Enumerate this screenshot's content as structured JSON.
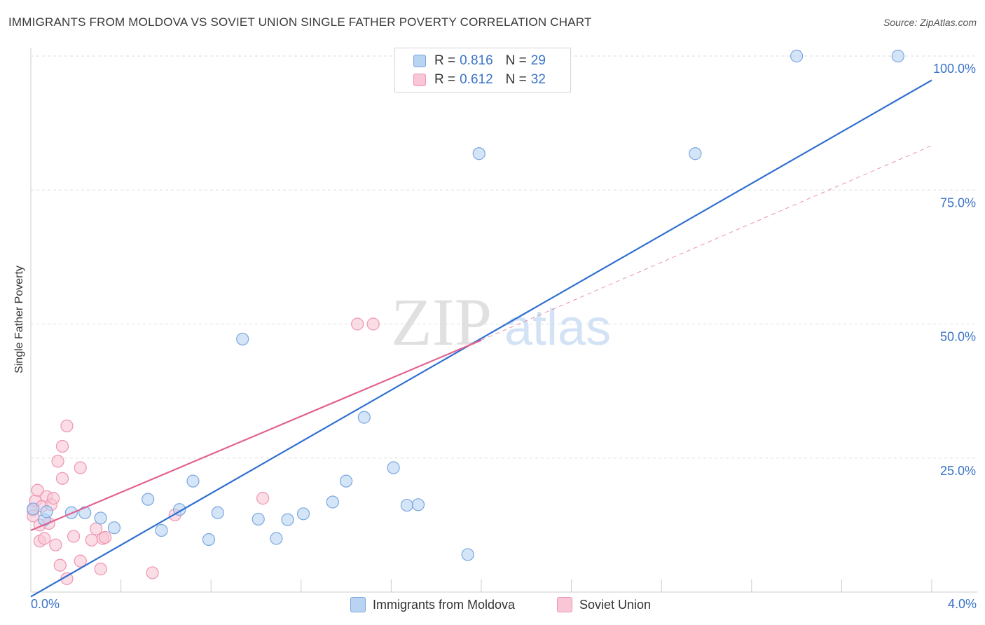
{
  "title": "IMMIGRANTS FROM MOLDOVA VS SOVIET UNION SINGLE FATHER POVERTY CORRELATION CHART",
  "source": "Source: ZipAtlas.com",
  "watermark": {
    "zip": "ZIP",
    "atlas": "atlas"
  },
  "legend_top": [
    {
      "r_label": "R =",
      "r_value": "0.816",
      "n_label": "N =",
      "n_value": "29"
    },
    {
      "r_label": "R =",
      "r_value": "0.612",
      "n_label": "N =",
      "n_value": "32"
    }
  ],
  "colors": {
    "blue_fill": "#b9d3f3",
    "blue_stroke": "#7aa7e0",
    "blue_line": "#2f6fd0",
    "pink_fill": "#f9c6d6",
    "pink_stroke": "#ee95b2",
    "pink_line": "#e2628f",
    "tick_text": "#3b73c9",
    "grid": "#dedede"
  },
  "chart_data": {
    "type": "scatter",
    "title": "IMMIGRANTS FROM MOLDOVA VS SOVIET UNION SINGLE FATHER POVERTY CORRELATION CHART",
    "xlabel": "",
    "ylabel": "Single Father Poverty",
    "xlim": [
      0.0,
      4.0
    ],
    "ylim": [
      0,
      100
    ],
    "x_tick_labels": [
      "0.0%",
      "4.0%"
    ],
    "y_ticks": [
      25,
      50,
      75,
      100
    ],
    "y_tick_labels": [
      "25.0%",
      "50.0%",
      "75.0%",
      "100.0%"
    ],
    "series": [
      {
        "name": "Immigrants from Moldova",
        "R": 0.816,
        "N": 29,
        "points": [
          [
            0.01,
            15.5
          ],
          [
            0.06,
            13.5
          ],
          [
            0.07,
            15
          ],
          [
            0.18,
            14.8
          ],
          [
            0.24,
            14.8
          ],
          [
            0.31,
            13.8
          ],
          [
            0.37,
            12
          ],
          [
            0.52,
            17.3
          ],
          [
            0.58,
            11.5
          ],
          [
            0.66,
            15.4
          ],
          [
            0.72,
            20.7
          ],
          [
            0.79,
            9.8
          ],
          [
            0.83,
            14.8
          ],
          [
            0.94,
            47.2
          ],
          [
            1.01,
            13.6
          ],
          [
            1.09,
            10
          ],
          [
            1.14,
            13.5
          ],
          [
            1.21,
            14.6
          ],
          [
            1.34,
            16.8
          ],
          [
            1.4,
            20.7
          ],
          [
            1.48,
            32.6
          ],
          [
            1.61,
            23.2
          ],
          [
            1.67,
            16.2
          ],
          [
            1.72,
            16.3
          ],
          [
            1.94,
            7
          ],
          [
            1.99,
            81.8
          ],
          [
            2.95,
            81.8
          ],
          [
            3.4,
            100
          ],
          [
            3.85,
            100
          ]
        ],
        "trend": {
          "x": [
            0.0,
            4.0
          ],
          "y": [
            -0.86,
            95.5
          ],
          "style": "solid"
        }
      },
      {
        "name": "Soviet Union",
        "R": 0.612,
        "N": 32,
        "points": [
          [
            0.01,
            15.3
          ],
          [
            0.02,
            17
          ],
          [
            0.03,
            19
          ],
          [
            0.04,
            12.5
          ],
          [
            0.04,
            9.5
          ],
          [
            0.05,
            16
          ],
          [
            0.06,
            10
          ],
          [
            0.07,
            17.8
          ],
          [
            0.08,
            12.8
          ],
          [
            0.09,
            16.3
          ],
          [
            0.1,
            17.5
          ],
          [
            0.11,
            8.8
          ],
          [
            0.12,
            24.4
          ],
          [
            0.13,
            5
          ],
          [
            0.14,
            27.2
          ],
          [
            0.14,
            21.2
          ],
          [
            0.16,
            2.5
          ],
          [
            0.16,
            31
          ],
          [
            0.19,
            10.4
          ],
          [
            0.22,
            23.2
          ],
          [
            0.22,
            5.8
          ],
          [
            0.27,
            9.7
          ],
          [
            0.29,
            11.8
          ],
          [
            0.31,
            4.3
          ],
          [
            0.32,
            10
          ],
          [
            0.33,
            10.2
          ],
          [
            0.54,
            3.6
          ],
          [
            0.64,
            14.4
          ],
          [
            1.03,
            17.5
          ],
          [
            1.45,
            50
          ],
          [
            1.52,
            50
          ],
          [
            0.01,
            14.2
          ]
        ],
        "trend": {
          "x": [
            0.0,
            2.0
          ],
          "y": [
            11.5,
            47.0
          ],
          "style": "solid"
        },
        "trend_extension": {
          "x": [
            2.0,
            4.0
          ],
          "y": [
            47.0,
            83.3
          ],
          "style": "dashed"
        }
      }
    ]
  },
  "legend_bottom": [
    "Immigrants from Moldova",
    "Soviet Union"
  ]
}
